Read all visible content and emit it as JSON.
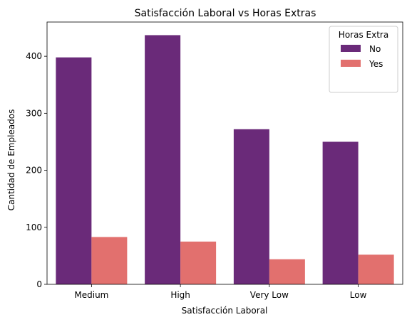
{
  "chart_data": {
    "type": "bar",
    "title": "Satisfacción Laboral vs Horas Extras",
    "xlabel": "Satisfacción Laboral",
    "ylabel": "Cantidad de Empleados",
    "categories": [
      "Medium",
      "High",
      "Very Low",
      "Low"
    ],
    "series": [
      {
        "name": "No",
        "color": "#6a2a79",
        "values": [
          398,
          437,
          272,
          250
        ]
      },
      {
        "name": "Yes",
        "color": "#e2706e",
        "values": [
          83,
          75,
          44,
          52
        ]
      }
    ],
    "ylim": [
      0,
      460
    ],
    "yticks": [
      0,
      100,
      200,
      300,
      400
    ],
    "legend": {
      "title": "Horas Extra",
      "placement": "top-right"
    },
    "grid": false
  }
}
